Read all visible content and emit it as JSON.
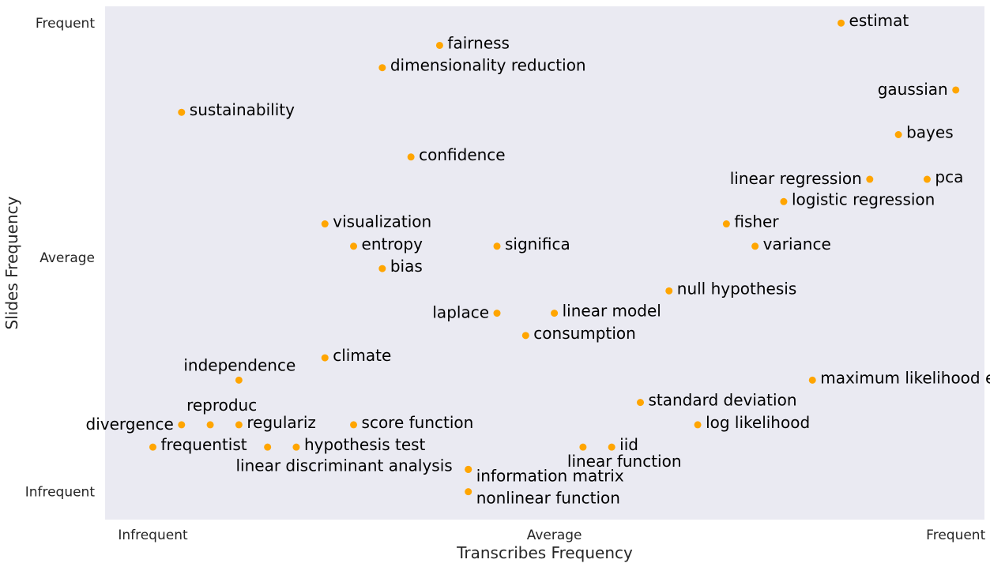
{
  "colors": {
    "plot_bg": "#eaeaf2",
    "point": "#ffa500",
    "text": "#000000"
  },
  "chart_data": {
    "type": "scatter",
    "title": "",
    "xlabel": "Transcribes Frequency",
    "ylabel": "Slides Frequency",
    "xlim": [
      -5,
      87
    ],
    "ylim": [
      -5,
      87
    ],
    "x_ticks": [
      {
        "value": 0,
        "label": "Infrequent"
      },
      {
        "value": 42,
        "label": "Average"
      },
      {
        "value": 84,
        "label": "Frequent"
      }
    ],
    "y_ticks": [
      {
        "value": 0,
        "label": "Infrequent"
      },
      {
        "value": 42,
        "label": "Average"
      },
      {
        "value": 84,
        "label": "Frequent"
      }
    ],
    "grid": false,
    "points": [
      {
        "label": "estimat",
        "x": 72,
        "y": 84
      },
      {
        "label": "fairness",
        "x": 30,
        "y": 80
      },
      {
        "label": "dimensionality reduction",
        "x": 24,
        "y": 76
      },
      {
        "label": "gaussian",
        "x": 84,
        "y": 72
      },
      {
        "label": "sustainability",
        "x": 3,
        "y": 68
      },
      {
        "label": "bayes",
        "x": 78,
        "y": 64
      },
      {
        "label": "confidence",
        "x": 27,
        "y": 60
      },
      {
        "label": "linear regression",
        "x": 75,
        "y": 56
      },
      {
        "label": "pca",
        "x": 81,
        "y": 56
      },
      {
        "label": "logistic regression",
        "x": 66,
        "y": 52
      },
      {
        "label": "visualization",
        "x": 18,
        "y": 48
      },
      {
        "label": "fisher",
        "x": 60,
        "y": 48
      },
      {
        "label": "entropy",
        "x": 21,
        "y": 44
      },
      {
        "label": "significa",
        "x": 36,
        "y": 44
      },
      {
        "label": "variance",
        "x": 63,
        "y": 44
      },
      {
        "label": "bias",
        "x": 24,
        "y": 40
      },
      {
        "label": "null hypothesis",
        "x": 54,
        "y": 36
      },
      {
        "label": "laplace",
        "x": 36,
        "y": 32
      },
      {
        "label": "linear model",
        "x": 42,
        "y": 32
      },
      {
        "label": "consumption",
        "x": 39,
        "y": 28
      },
      {
        "label": "climate",
        "x": 18,
        "y": 24
      },
      {
        "label": "independence",
        "x": 9,
        "y": 20
      },
      {
        "label": "maximum likelihood estimat",
        "x": 69,
        "y": 20
      },
      {
        "label": "standard deviation",
        "x": 51,
        "y": 16
      },
      {
        "label": "divergence",
        "x": 3,
        "y": 12
      },
      {
        "label": "reproduc",
        "x": 6,
        "y": 12
      },
      {
        "label": "regulariz",
        "x": 9,
        "y": 12
      },
      {
        "label": "score function",
        "x": 21,
        "y": 12
      },
      {
        "label": "log likelihood",
        "x": 57,
        "y": 12
      },
      {
        "label": "frequentist",
        "x": 0,
        "y": 8
      },
      {
        "label": "",
        "x": 12,
        "y": 8
      },
      {
        "label": "hypothesis test",
        "x": 15,
        "y": 8
      },
      {
        "label": "linear function",
        "x": 45,
        "y": 8
      },
      {
        "label": "iid",
        "x": 48,
        "y": 8
      },
      {
        "label": "linear discriminant analysis",
        "x": 33,
        "y": 4
      },
      {
        "label": "information matrix",
        "x": 33,
        "y": 4
      },
      {
        "label": "nonlinear function",
        "x": 33,
        "y": 0
      }
    ]
  }
}
